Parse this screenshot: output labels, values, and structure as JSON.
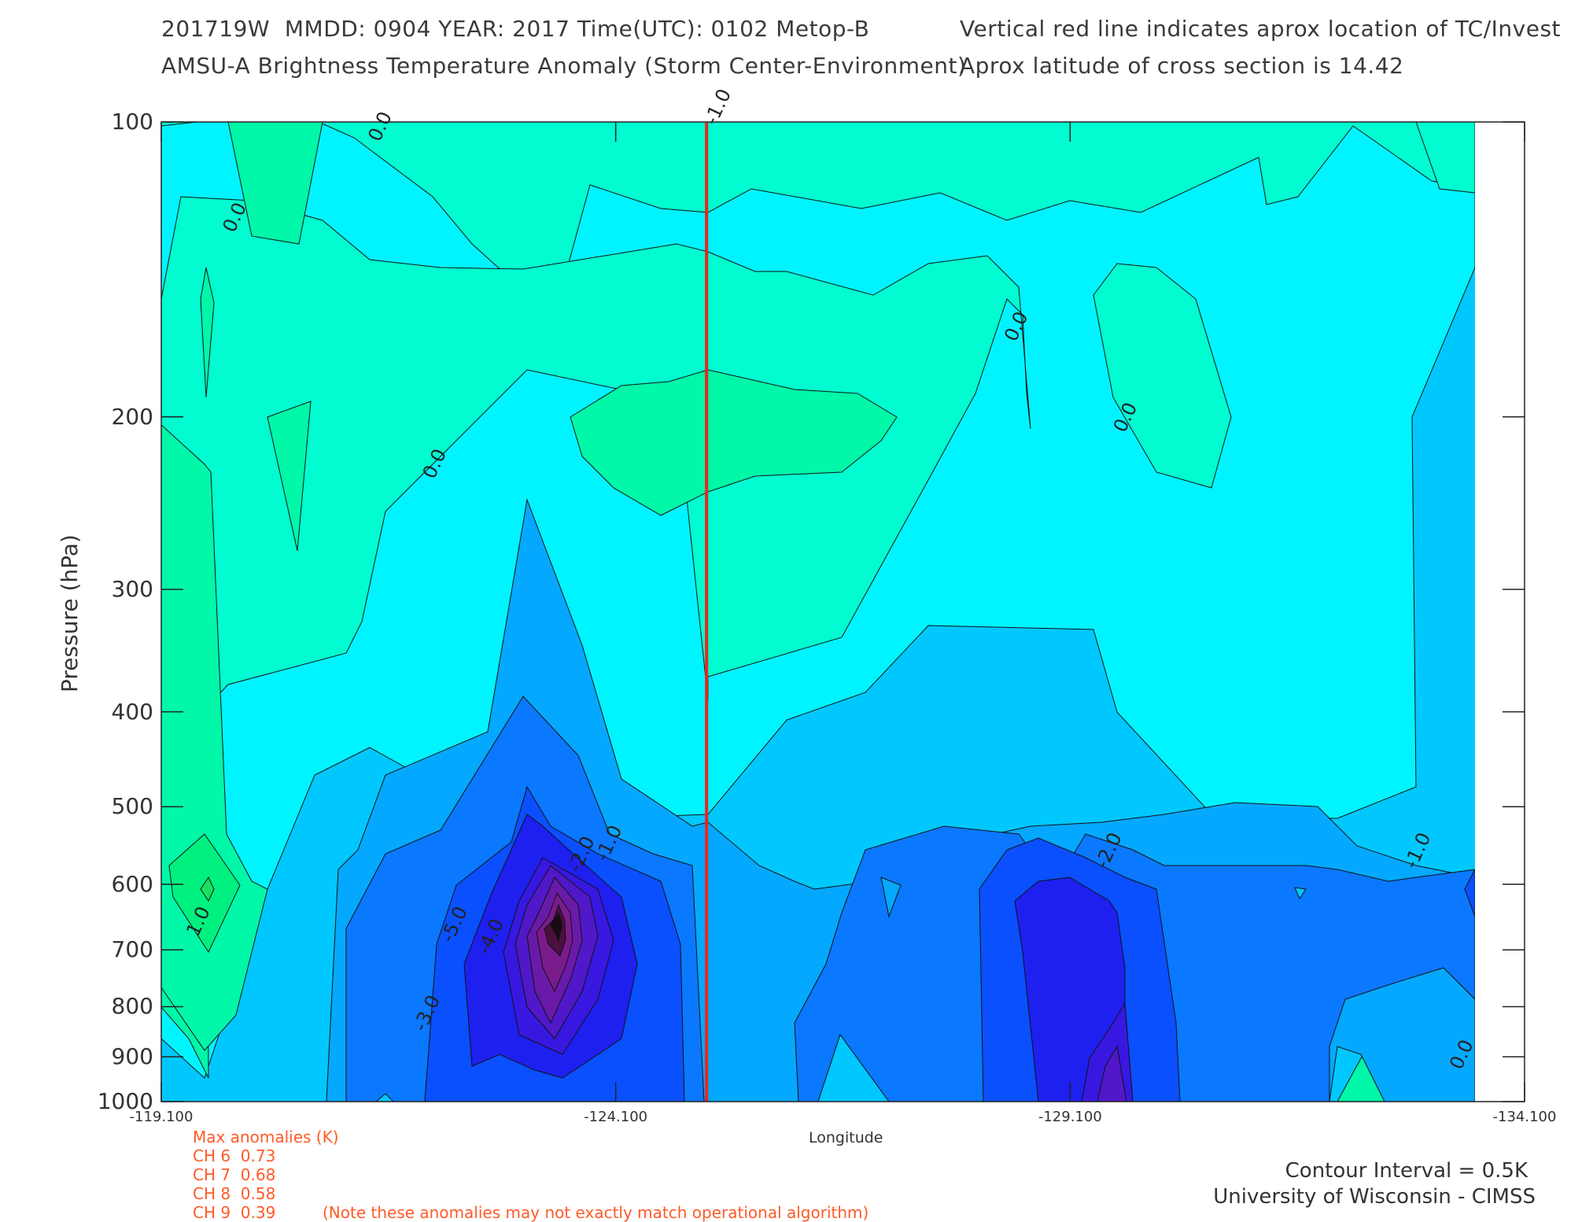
{
  "header": {
    "line1_left": "201719W  MMDD: 0904 YEAR: 2017 Time(UTC): 0102 Metop-B",
    "line2_left": "AMSU-A Brightness Temperature Anomaly (Storm Center-Environment)",
    "line1_right": "Vertical red line indicates aprox location of TC/Invest",
    "line2_right": "Aprox latitude of cross section is 14.42"
  },
  "chart_data": {
    "type": "contour",
    "title": "AMSU-A Brightness Temperature Anomaly (Storm Center-Environment)",
    "xlabel": "Longitude",
    "ylabel": "Pressure (hPa)",
    "x_ticks": [
      "-119.100",
      "-124.100",
      "-129.100",
      "-134.100"
    ],
    "xlim": [
      -119.1,
      -134.1
    ],
    "y_ticks": [
      "100",
      "200",
      "300",
      "400",
      "500",
      "600",
      "700",
      "800",
      "900",
      "1000"
    ],
    "ylim": [
      100,
      1000
    ],
    "y_scale": "log",
    "storm_longitude": -125.1,
    "contour_interval": 0.5,
    "contour_labels": [
      {
        "text": "0.0",
        "lon": -119.9,
        "p": 130
      },
      {
        "text": "0.0",
        "lon": -121.5,
        "p": 105
      },
      {
        "text": "-1.0",
        "lon": -125.2,
        "p": 101
      },
      {
        "text": "0.0",
        "lon": -122.1,
        "p": 232
      },
      {
        "text": "0.0",
        "lon": -128.5,
        "p": 168
      },
      {
        "text": "0.0",
        "lon": -129.7,
        "p": 208
      },
      {
        "text": "1.0",
        "lon": -119.5,
        "p": 680
      },
      {
        "text": "-2.0",
        "lon": -123.7,
        "p": 585
      },
      {
        "text": "-1.0",
        "lon": -124.0,
        "p": 570
      },
      {
        "text": "-5.0",
        "lon": -122.3,
        "p": 690
      },
      {
        "text": "-4.0",
        "lon": -122.7,
        "p": 710
      },
      {
        "text": "-3.0",
        "lon": -122.0,
        "p": 850
      },
      {
        "text": "-2.0",
        "lon": -129.5,
        "p": 580
      },
      {
        "text": "-1.0",
        "lon": -132.9,
        "p": 580
      },
      {
        "text": "0.0",
        "lon": -133.4,
        "p": 930
      }
    ],
    "anomaly_colors": {
      "-6": "#1a0a14",
      "-5": "#5a1a8a",
      "-4": "#4a18d8",
      "-3": "#1e20f0",
      "-2": "#0a78ff",
      "-1.5": "#05a8ff",
      "-1": "#00c8ff",
      "-0.5": "#00f4ff",
      "0": "#00fcd0",
      "0.5": "#00f8a8",
      "1": "#00f080"
    },
    "storm_line_color": "#e8261e"
  },
  "footer": {
    "xlabel": "Longitude",
    "max_title": "Max anomalies (K)",
    "max_rows": [
      "CH 6  0.73",
      "CH 7  0.68",
      "CH 8  0.58",
      "CH 9  0.39"
    ],
    "note": "(Note these anomalies may not exactly match operational algorithm)",
    "contour_interval": "Contour Interval = 0.5K",
    "credit": "University of Wisconsin - CIMSS"
  }
}
